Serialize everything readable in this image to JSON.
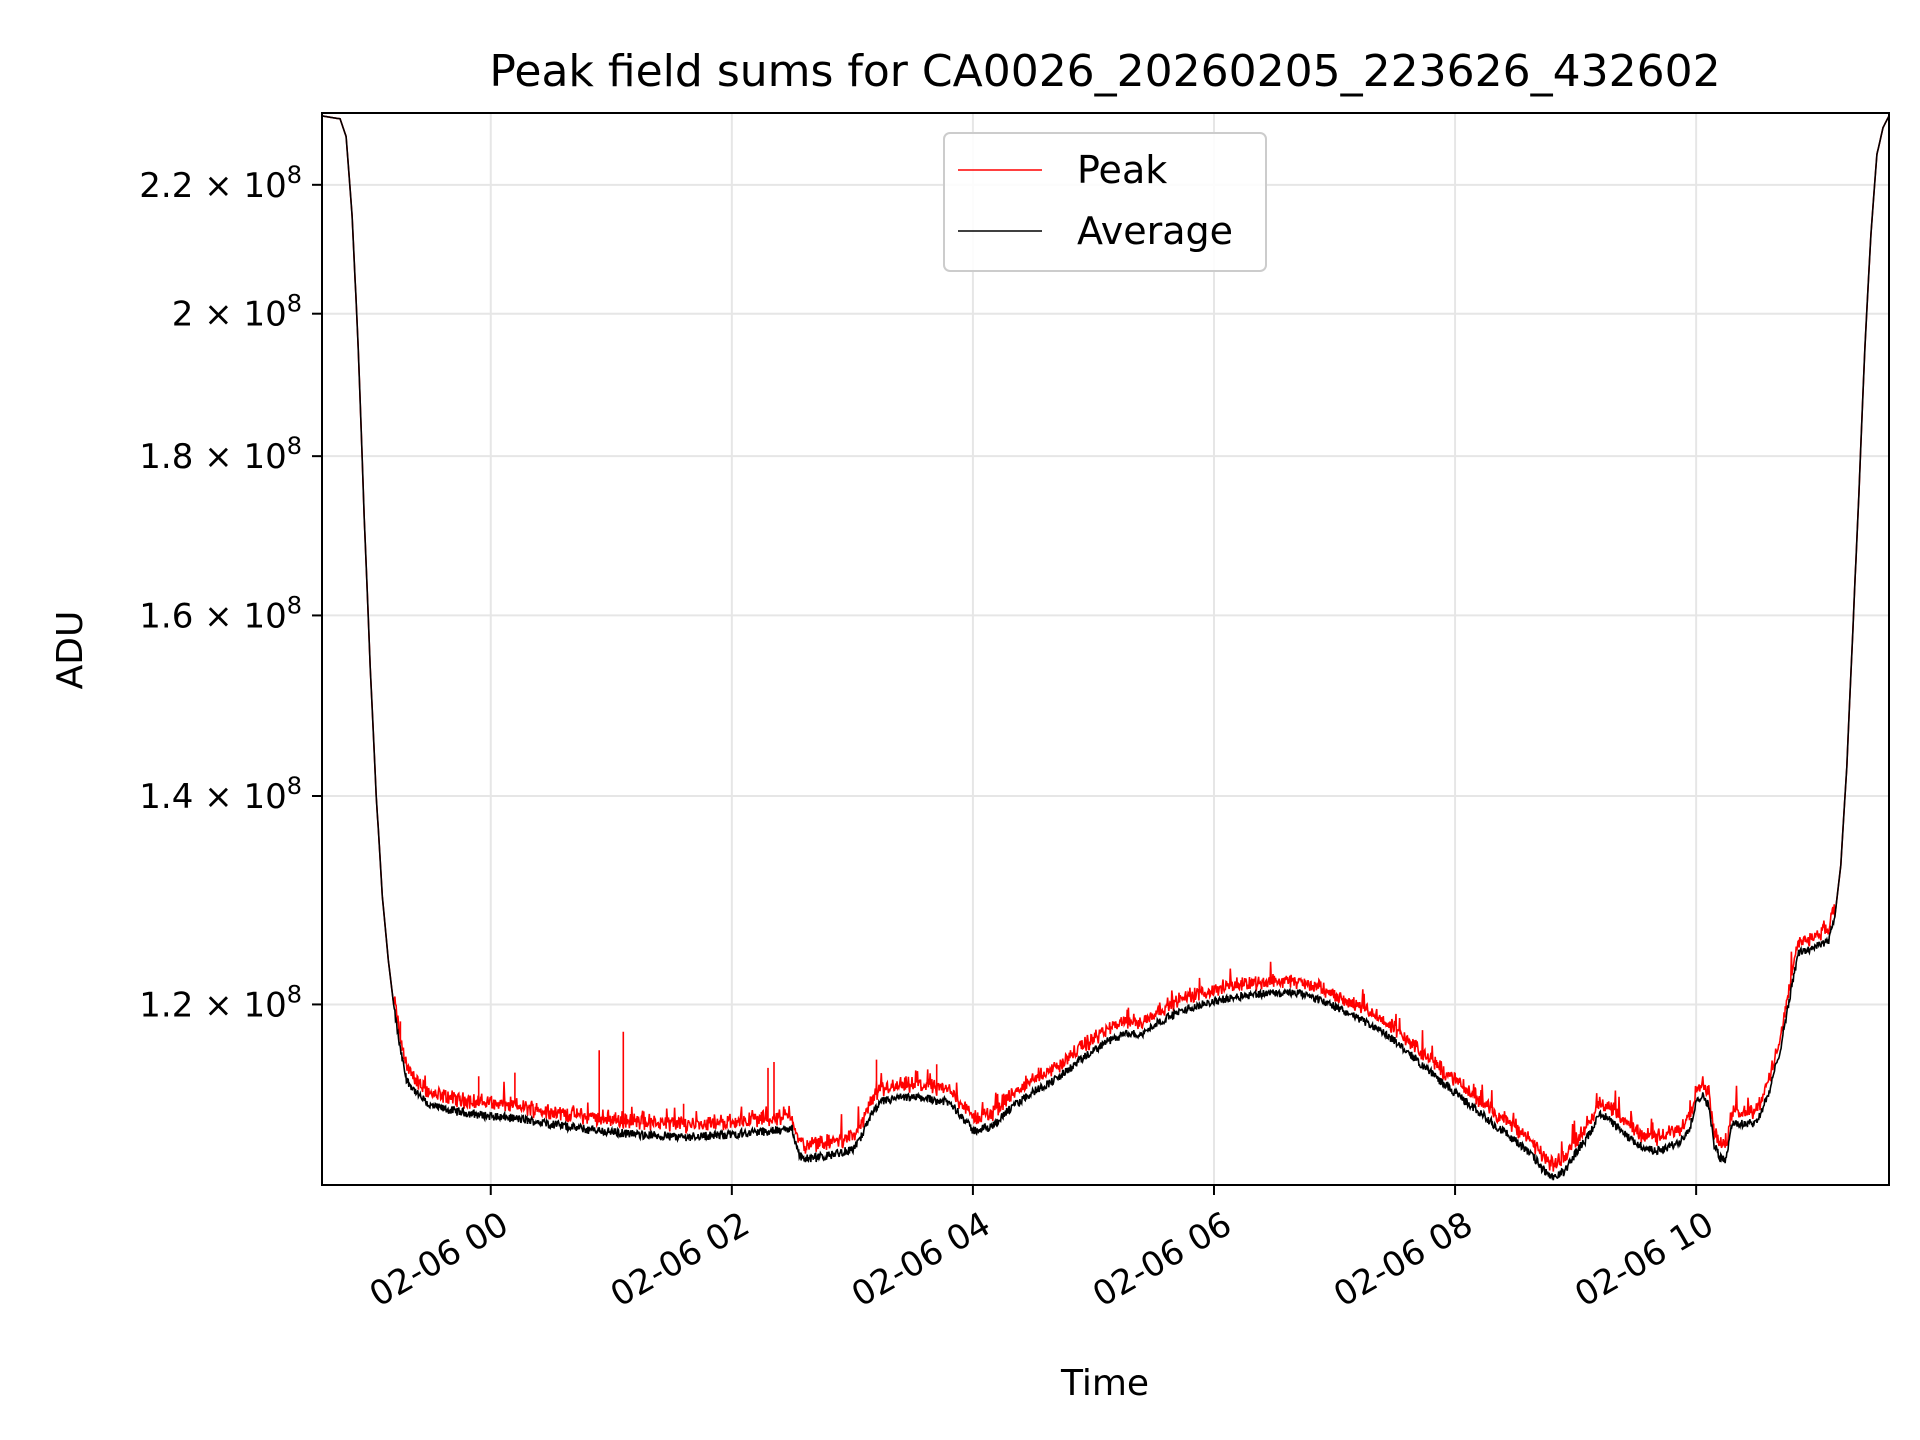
{
  "chart_data": {
    "type": "line",
    "title": "Peak field sums for CA0026_20260205_223626_432602",
    "xlabel": "Time",
    "ylabel": "ADU",
    "x_unit": "hours since 2026-02-06 00:00",
    "xlim": [
      -1.4,
      11.6
    ],
    "ylim": [
      105000000,
      232000000
    ],
    "y_scale": "log",
    "grid": true,
    "legend_position": "top-center",
    "x_ticks": [
      {
        "value": 0,
        "label": "02-06 00"
      },
      {
        "value": 2,
        "label": "02-06 02"
      },
      {
        "value": 4,
        "label": "02-06 04"
      },
      {
        "value": 6,
        "label": "02-06 06"
      },
      {
        "value": 8,
        "label": "02-06 08"
      },
      {
        "value": 10,
        "label": "02-06 10"
      }
    ],
    "y_ticks": [
      {
        "value": 120000000,
        "mantissa": "1.2",
        "exp": "8"
      },
      {
        "value": 140000000,
        "mantissa": "1.4",
        "exp": "8"
      },
      {
        "value": 160000000,
        "mantissa": "1.6",
        "exp": "8"
      },
      {
        "value": 180000000,
        "mantissa": "1.8",
        "exp": "8"
      },
      {
        "value": 200000000,
        "mantissa": "2",
        "exp": "8"
      },
      {
        "value": 220000000,
        "mantissa": "2.2",
        "exp": "8"
      }
    ],
    "series": [
      {
        "name": "Peak",
        "color": "#ff0000"
      },
      {
        "name": "Average",
        "color": "#000000"
      }
    ],
    "average_points": [
      [
        -1.4,
        231500000
      ],
      [
        -1.25,
        231000000
      ],
      [
        -1.2,
        228000000
      ],
      [
        -1.15,
        215000000
      ],
      [
        -1.1,
        195000000
      ],
      [
        -1.05,
        172000000
      ],
      [
        -1.0,
        154000000
      ],
      [
        -0.95,
        140000000
      ],
      [
        -0.9,
        130000000
      ],
      [
        -0.85,
        124000000
      ],
      [
        -0.8,
        119500000
      ],
      [
        -0.75,
        116000000
      ],
      [
        -0.7,
        113500000
      ],
      [
        -0.6,
        112200000
      ],
      [
        -0.5,
        111300000
      ],
      [
        -0.3,
        110900000
      ],
      [
        -0.1,
        110600000
      ],
      [
        0.0,
        110500000
      ],
      [
        0.2,
        110300000
      ],
      [
        0.4,
        110000000
      ],
      [
        0.6,
        109700000
      ],
      [
        0.8,
        109400000
      ],
      [
        1.0,
        109200000
      ],
      [
        1.2,
        109000000
      ],
      [
        1.4,
        108900000
      ],
      [
        1.6,
        108800000
      ],
      [
        1.8,
        108900000
      ],
      [
        2.0,
        109000000
      ],
      [
        2.2,
        109200000
      ],
      [
        2.4,
        109300000
      ],
      [
        2.5,
        109500000
      ],
      [
        2.55,
        107500000
      ],
      [
        2.6,
        107000000
      ],
      [
        2.8,
        107300000
      ],
      [
        3.0,
        107800000
      ],
      [
        3.05,
        108300000
      ],
      [
        3.15,
        110500000
      ],
      [
        3.25,
        111700000
      ],
      [
        3.4,
        112000000
      ],
      [
        3.6,
        112000000
      ],
      [
        3.8,
        111600000
      ],
      [
        3.9,
        110600000
      ],
      [
        4.0,
        109300000
      ],
      [
        4.15,
        109600000
      ],
      [
        4.3,
        111000000
      ],
      [
        4.5,
        112500000
      ],
      [
        4.7,
        113600000
      ],
      [
        4.9,
        115200000
      ],
      [
        5.1,
        116700000
      ],
      [
        5.3,
        117500000
      ],
      [
        5.4,
        117300000
      ],
      [
        5.5,
        118200000
      ],
      [
        5.7,
        119300000
      ],
      [
        5.9,
        120000000
      ],
      [
        6.1,
        120500000
      ],
      [
        6.3,
        120900000
      ],
      [
        6.5,
        121000000
      ],
      [
        6.7,
        121000000
      ],
      [
        6.9,
        120300000
      ],
      [
        7.1,
        119300000
      ],
      [
        7.3,
        118200000
      ],
      [
        7.5,
        116800000
      ],
      [
        7.7,
        115000000
      ],
      [
        7.9,
        113200000
      ],
      [
        8.1,
        111600000
      ],
      [
        8.3,
        110000000
      ],
      [
        8.5,
        108500000
      ],
      [
        8.65,
        107200000
      ],
      [
        8.75,
        106000000
      ],
      [
        8.8,
        105500000
      ],
      [
        8.9,
        106000000
      ],
      [
        9.0,
        107500000
      ],
      [
        9.1,
        108800000
      ],
      [
        9.15,
        109600000
      ],
      [
        9.2,
        110800000
      ],
      [
        9.3,
        110000000
      ],
      [
        9.45,
        108600000
      ],
      [
        9.6,
        107800000
      ],
      [
        9.7,
        107700000
      ],
      [
        9.85,
        108300000
      ],
      [
        9.95,
        109500000
      ],
      [
        10.0,
        111800000
      ],
      [
        10.05,
        112200000
      ],
      [
        10.1,
        111500000
      ],
      [
        10.15,
        108200000
      ],
      [
        10.2,
        107100000
      ],
      [
        10.25,
        107000000
      ],
      [
        10.3,
        110000000
      ],
      [
        10.4,
        109800000
      ],
      [
        10.5,
        110000000
      ],
      [
        10.6,
        112200000
      ],
      [
        10.7,
        116200000
      ],
      [
        10.8,
        122000000
      ],
      [
        10.85,
        124700000
      ],
      [
        10.9,
        124800000
      ],
      [
        11.0,
        125300000
      ],
      [
        11.1,
        125800000
      ],
      [
        11.15,
        128000000
      ],
      [
        11.2,
        133000000
      ],
      [
        11.25,
        143000000
      ],
      [
        11.3,
        158000000
      ],
      [
        11.35,
        175000000
      ],
      [
        11.4,
        195000000
      ],
      [
        11.45,
        212000000
      ],
      [
        11.5,
        225000000
      ],
      [
        11.55,
        229500000
      ],
      [
        11.6,
        231500000
      ]
    ],
    "peak_offset": 600000,
    "peak_spikes": [
      [
        -0.75,
        118500000
      ],
      [
        -0.1,
        113800000
      ],
      [
        0.2,
        114100000
      ],
      [
        0.9,
        116000000
      ],
      [
        1.1,
        117600000
      ],
      [
        1.6,
        111500000
      ],
      [
        2.3,
        114500000
      ],
      [
        2.35,
        115000000
      ],
      [
        3.2,
        115200000
      ],
      [
        3.7,
        114800000
      ],
      [
        6.0,
        121700000
      ],
      [
        6.7,
        122300000
      ],
      [
        7.9,
        114000000
      ],
      [
        9.3,
        111000000
      ]
    ]
  }
}
